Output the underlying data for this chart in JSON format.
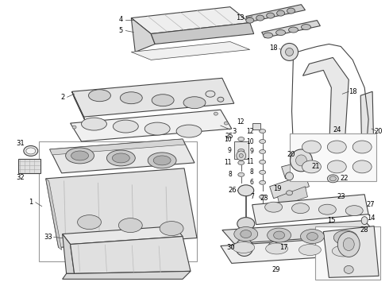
{
  "background_color": "#ffffff",
  "line_color": "#333333",
  "label_color": "#000000",
  "fig_width": 4.9,
  "fig_height": 3.6,
  "dpi": 100,
  "component_fc": "#e8e8e8",
  "component_lc": "#444444",
  "box_lc": "#999999"
}
